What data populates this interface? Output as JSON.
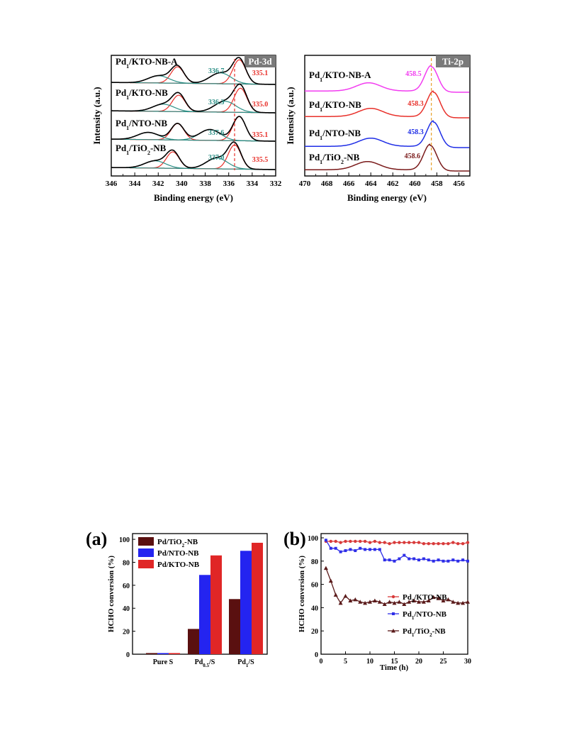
{
  "chart_data": [
    {
      "type": "line",
      "title": "Pd-3d",
      "xlabel": "Binding energy (eV)",
      "ylabel": "Intensity (a.u.)",
      "xlim": [
        346,
        332
      ],
      "x_reversed": true,
      "xticks": [
        "346",
        "344",
        "342",
        "340",
        "338",
        "336",
        "334",
        "332"
      ],
      "reference_line_x": 335.5,
      "series": [
        {
          "name": "Pd1/KTO-NB-A",
          "label_main": "Pd",
          "label_sub": "1",
          "label_rest": "/KTO-NB-A",
          "peak_labels": [
            "336.7",
            "335.1"
          ]
        },
        {
          "name": "Pd1/KTO-NB",
          "label_main": "Pd",
          "label_sub": "1",
          "label_rest": "/KTO-NB",
          "peak_labels": [
            "336.3",
            "335.0"
          ]
        },
        {
          "name": "Pd1/NTO-NB",
          "label_main": "Pd",
          "label_sub": "1",
          "label_rest": "/NTO-NB",
          "peak_labels": [
            "337.6",
            "335.1"
          ]
        },
        {
          "name": "Pd1/TiO2-NB",
          "label_main": "Pd",
          "label_sub": "1",
          "label_rest": "/TiO",
          "label_sub2": "2",
          "label_rest2": "-NB",
          "peak_labels": [
            "337.0",
            "335.5"
          ]
        }
      ],
      "colors": {
        "envelope": "#000000",
        "component_high": "#e8302a",
        "component_low": "#2b8f86",
        "peak_low_text": "#2b8f86",
        "peak_high_text": "#e8302a"
      }
    },
    {
      "type": "line",
      "title": "Ti-2p",
      "xlabel": "Binding energy (eV)",
      "ylabel": "Intensity (a.u.)",
      "xlim": [
        470,
        455
      ],
      "x_reversed": true,
      "xticks": [
        "470",
        "468",
        "466",
        "464",
        "462",
        "460",
        "458",
        "456"
      ],
      "reference_line_x": 458.5,
      "series": [
        {
          "name": "Pd1/KTO-NB-A",
          "label_main": "Pd",
          "label_sub": "1",
          "label_rest": "/KTO-NB-A",
          "peak_label": "458.5",
          "color": "#f23cf0"
        },
        {
          "name": "Pd1/KTO-NB",
          "label_main": "Pd",
          "label_sub": "1",
          "label_rest": "/KTO-NB",
          "peak_label": "458.3",
          "color": "#e8302a"
        },
        {
          "name": "Pd1/NTO-NB",
          "label_main": "Pd",
          "label_sub": "1",
          "label_rest": "/NTO-NB",
          "peak_label": "458.3",
          "color": "#1f2ee6"
        },
        {
          "name": "Pd1/TiO2-NB",
          "label_main": "Pd",
          "label_sub": "1",
          "label_rest": "/TiO",
          "label_sub2": "2",
          "label_rest2": "-NB",
          "peak_label": "458.6",
          "color": "#7a1a1a"
        }
      ]
    },
    {
      "type": "bar",
      "panel_label": "(a)",
      "ylabel": "HCHO conversion (%)",
      "ylim": [
        0,
        100
      ],
      "yticks": [
        "0",
        "20",
        "40",
        "60",
        "80",
        "100"
      ],
      "categories": [
        {
          "main": "Pure S",
          "sub": "",
          "rest": ""
        },
        {
          "main": "Pd",
          "sub": "0.5",
          "rest": "/S"
        },
        {
          "main": "Pd",
          "sub": "1",
          "rest": "/S"
        }
      ],
      "series": [
        {
          "name": "Pd/TiO2-NB",
          "label_main": "Pd/TiO",
          "label_sub": "2",
          "label_rest": "-NB",
          "color": "#5a1010",
          "values": [
            1,
            22,
            48
          ]
        },
        {
          "name": "Pd/NTO-NB",
          "label_main": "Pd/NTO-NB",
          "label_sub": "",
          "label_rest": "",
          "color": "#2424f0",
          "values": [
            1,
            69,
            90
          ]
        },
        {
          "name": "Pd/KTO-NB",
          "label_main": "Pd/KTO-NB",
          "label_sub": "",
          "label_rest": "",
          "color": "#e02626",
          "values": [
            1,
            86,
            97
          ]
        }
      ],
      "legend_position": "top-left"
    },
    {
      "type": "line",
      "panel_label": "(b)",
      "xlabel": "Time (h)",
      "ylabel": "HCHO conversion (%)",
      "xlim": [
        0,
        30
      ],
      "ylim": [
        0,
        100
      ],
      "xticks": [
        "0",
        "5",
        "10",
        "15",
        "20",
        "25",
        "30"
      ],
      "yticks": [
        "0",
        "20",
        "40",
        "60",
        "80",
        "100"
      ],
      "x": [
        1,
        2,
        3,
        4,
        5,
        6,
        7,
        8,
        9,
        10,
        11,
        12,
        13,
        14,
        15,
        16,
        17,
        18,
        19,
        20,
        21,
        22,
        23,
        24,
        25,
        26,
        27,
        28,
        29,
        30
      ],
      "series": [
        {
          "name": "Pd1/KTO-NB",
          "label_main": "Pd",
          "label_sub": "1",
          "label_rest": "/KTO-NB",
          "color": "#d83a3a",
          "marker": "circle",
          "values": [
            97,
            97,
            97,
            96,
            97,
            97,
            97,
            97,
            97,
            96,
            97,
            96,
            96,
            95,
            96,
            96,
            96,
            96,
            96,
            96,
            95,
            95,
            95,
            95,
            95,
            95,
            96,
            95,
            95,
            96
          ]
        },
        {
          "name": "Pd1/NTO-NB",
          "label_main": "Pd",
          "label_sub": "1",
          "label_rest": "/NTO-NB",
          "color": "#2e2ee8",
          "marker": "square",
          "values": [
            98,
            91,
            91,
            88,
            89,
            90,
            89,
            91,
            90,
            90,
            90,
            90,
            81,
            81,
            80,
            82,
            85,
            82,
            82,
            81,
            82,
            81,
            80,
            81,
            80,
            80,
            81,
            80,
            81,
            80
          ]
        },
        {
          "name": "Pd1/TiO2-NB",
          "label_main": "Pd",
          "label_sub": "1",
          "label_rest": "/TiO",
          "label_sub2": "2",
          "label_rest2": "-NB",
          "color": "#5a1a1a",
          "marker": "triangle",
          "values": [
            74,
            63,
            51,
            44,
            50,
            46,
            47,
            45,
            44,
            45,
            46,
            45,
            43,
            45,
            44,
            45,
            43,
            45,
            46,
            45,
            45,
            46,
            49,
            48,
            46,
            47,
            45,
            44,
            44,
            45
          ]
        }
      ],
      "legend_position": "bottom-right"
    }
  ]
}
